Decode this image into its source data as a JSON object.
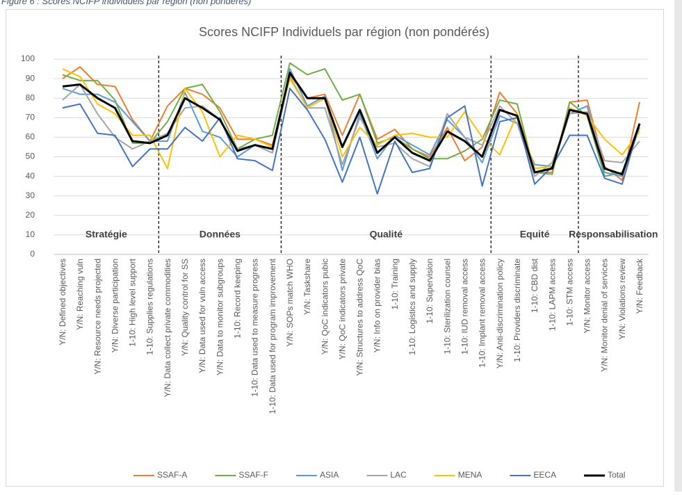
{
  "caption": "Figure 6 : Scores NCIFP individuels par région (non pondérés)",
  "chart_data": {
    "type": "line",
    "title": "Scores NCIFP Individuels par région (non pondérés)",
    "categories": [
      "Y/N: Defined objectives",
      "Y/N: Reaching vuln",
      "Y/N: Resource needs projected",
      "Y/N: Diverse participation",
      "1-10: High level support",
      "1-10: Supplies regulations",
      "Y/N: Data collect private commodities",
      "Y/N: Quality control for SS",
      "Y/N: Data used for vuln access",
      "Y/N: Data to monitor subgroups",
      "1-10: Record keeping",
      "1-10: Data used to measure progress",
      "1-10: Data used for program improvement",
      "Y/N: SOPs match WHO",
      "Y/N: Taskshare",
      "Y/N: QoC indicators pubic",
      "Y/N: QoC indicators private",
      "Y/N: Structures to address QoC",
      "Y/N: Info on provider bias",
      "1-10: Training",
      "1-10: Logistics and supply",
      "1-10: Supervision",
      "1-10: Sterilization counsel",
      "1-10: IUD removal access",
      "1-10: Implant removal access",
      "Y/N: Anti-discrimination policy",
      "1-10: Providers discriminate",
      "1-10: CBD dist",
      "1-10: LAPM access",
      "1-10: STM access",
      "Y/N: Monitor access",
      "Y/N: Monitor denial of services",
      "Y/N: Violations review",
      "Y/N: Feedback"
    ],
    "series": [
      {
        "name": "SSAF-A",
        "color": "#ed7d31",
        "width": 2,
        "values": [
          90,
          96,
          87,
          86,
          69,
          58,
          76,
          85,
          82,
          75,
          59,
          59,
          56,
          92,
          80,
          82,
          61,
          82,
          59,
          64,
          54,
          50,
          65,
          48,
          55,
          83,
          72,
          42,
          42,
          78,
          79,
          45,
          38,
          78
        ]
      },
      {
        "name": "SSAF-F",
        "color": "#70ad47",
        "width": 2,
        "values": [
          92,
          89,
          89,
          79,
          57,
          57,
          68,
          85,
          87,
          73,
          54,
          59,
          61,
          98,
          92,
          95,
          79,
          82,
          57,
          60,
          54,
          49,
          49,
          53,
          59,
          79,
          77,
          42,
          41,
          78,
          71,
          40,
          42,
          65
        ]
      },
      {
        "name": "ASIA",
        "color": "#5b9bd5",
        "width": 2,
        "values": [
          85,
          82,
          82,
          78,
          68,
          58,
          58,
          83,
          63,
          60,
          50,
          56,
          52,
          95,
          76,
          81,
          43,
          72,
          49,
          61,
          56,
          51,
          69,
          60,
          47,
          71,
          67,
          46,
          45,
          72,
          76,
          42,
          40,
          65
        ]
      },
      {
        "name": "LAC",
        "color": "#a5a5a5",
        "width": 2,
        "values": [
          79,
          87,
          72,
          60,
          54,
          58,
          62,
          75,
          76,
          69,
          54,
          56,
          52,
          91,
          75,
          75,
          46,
          70,
          55,
          57,
          49,
          45,
          72,
          60,
          56,
          76,
          67,
          40,
          47,
          72,
          73,
          48,
          47,
          58
        ]
      },
      {
        "name": "MENA",
        "color": "#ffc000",
        "width": 2,
        "values": [
          95,
          91,
          77,
          72,
          61,
          61,
          44,
          85,
          73,
          50,
          61,
          59,
          55,
          90,
          75,
          80,
          50,
          65,
          56,
          61,
          62,
          60,
          60,
          73,
          60,
          51,
          72,
          44,
          45,
          75,
          71,
          59,
          51,
          63
        ]
      },
      {
        "name": "EECA",
        "color": "#4472c4",
        "width": 2,
        "values": [
          75,
          77,
          62,
          61,
          45,
          54,
          54,
          65,
          58,
          70,
          49,
          48,
          43,
          85,
          74,
          59,
          37,
          60,
          31,
          58,
          42,
          44,
          70,
          76,
          35,
          68,
          70,
          36,
          45,
          61,
          61,
          39,
          36,
          67
        ]
      },
      {
        "name": "Total",
        "color": "#000000",
        "width": 3,
        "values": [
          86,
          87,
          80,
          75,
          58,
          57,
          61,
          80,
          75,
          69,
          53,
          56,
          54,
          93,
          80,
          80,
          55,
          74,
          52,
          60,
          52,
          48,
          63,
          58,
          50,
          74,
          71,
          42,
          44,
          74,
          72,
          44,
          41,
          67
        ]
      }
    ],
    "sections": [
      {
        "label": "Stratégie",
        "first": 0,
        "last": 5
      },
      {
        "label": "Données",
        "first": 6,
        "last": 12
      },
      {
        "label": "Qualité",
        "first": 13,
        "last": 24
      },
      {
        "label": "Equité",
        "first": 25,
        "last": 29
      },
      {
        "label": "Responsabilisation",
        "first": 30,
        "last": 33
      }
    ],
    "ylim": [
      0,
      100
    ],
    "yticks": [
      0,
      10,
      20,
      30,
      40,
      50,
      60,
      70,
      80,
      90,
      100
    ],
    "grid": true,
    "legend": "bottom"
  }
}
